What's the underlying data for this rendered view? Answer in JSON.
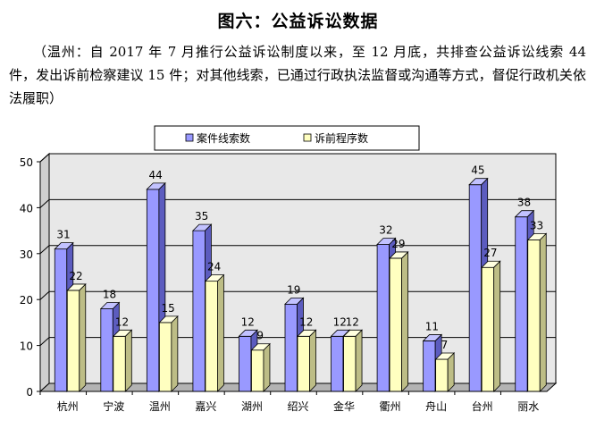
{
  "heading": "图六：公益诉讼数据",
  "note": "（温州：自 2017 年 7 月推行公益诉讼制度以来，至 12 月底，共排查公益诉讼线索 44 件，发出诉前检察建议 15 件；对其他线索，已通过行政执法监督或沟通等方式，督促行政机关依法履职）",
  "colors": {
    "series1_front": "#9999ff",
    "series1_side": "#5c5cbf",
    "series1_top": "#c2c2ff",
    "series2_front": "#ffffc0",
    "series2_side": "#bdbd86",
    "series2_top": "#ffffe0",
    "wall": "#e8e8e8",
    "floor": "#b3b3b3"
  },
  "chart_data": {
    "type": "bar",
    "title": "",
    "xlabel": "",
    "ylabel": "",
    "ylim": [
      0,
      50
    ],
    "yticks": [
      0,
      10,
      20,
      30,
      40,
      50
    ],
    "grid": true,
    "legend_position": "top",
    "categories": [
      "杭州",
      "宁波",
      "温州",
      "嘉兴",
      "湖州",
      "绍兴",
      "金华",
      "衢州",
      "舟山",
      "台州",
      "丽水"
    ],
    "series": [
      {
        "name": "案件线索数",
        "values": [
          31,
          18,
          44,
          35,
          12,
          19,
          12,
          32,
          11,
          45,
          38
        ]
      },
      {
        "name": "诉前程序数",
        "values": [
          22,
          12,
          15,
          24,
          9,
          12,
          12,
          29,
          7,
          27,
          33
        ]
      }
    ]
  }
}
